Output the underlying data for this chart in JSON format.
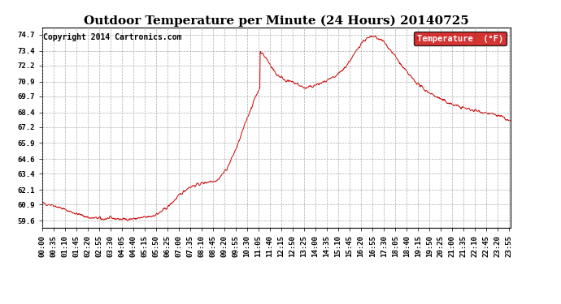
{
  "title": "Outdoor Temperature per Minute (24 Hours) 20140725",
  "copyright_text": "Copyright 2014 Cartronics.com",
  "legend_label": "Temperature  (°F)",
  "line_color": "#cc0000",
  "legend_bg": "#cc0000",
  "legend_text_color": "#ffffff",
  "bg_color": "#ffffff",
  "plot_bg_color": "#ffffff",
  "grid_color": "#999999",
  "ytick_values": [
    59.6,
    60.9,
    62.1,
    63.4,
    64.6,
    65.9,
    67.2,
    68.4,
    69.7,
    70.9,
    72.2,
    73.4,
    74.7
  ],
  "ymin": 59.0,
  "ymax": 75.3,
  "title_fontsize": 11,
  "axis_fontsize": 6.5,
  "copyright_fontsize": 7
}
